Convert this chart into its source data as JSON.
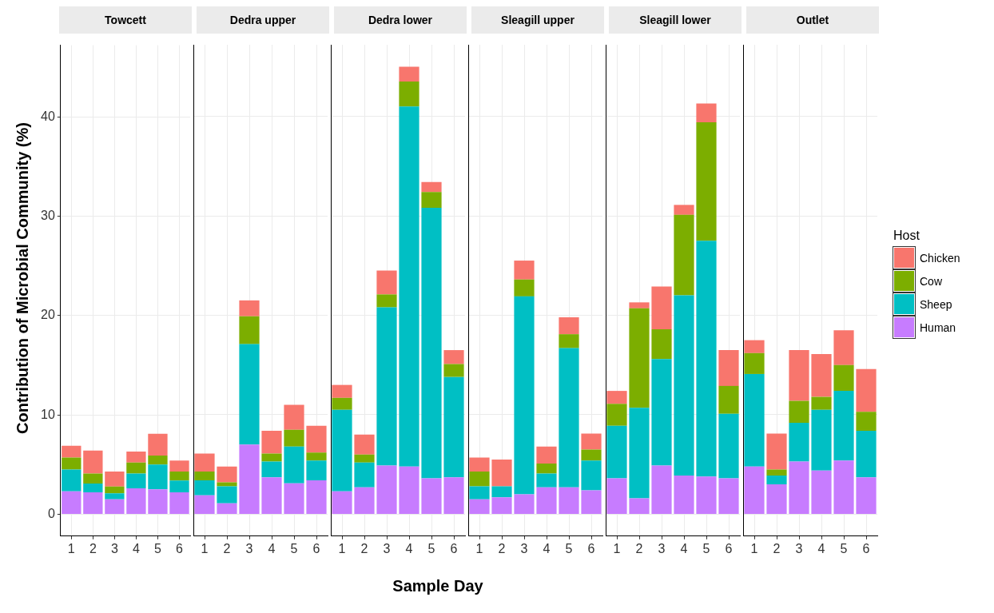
{
  "chart_data": [
    {
      "type": "bar",
      "title": "Towcett",
      "ylabel": "Contribution of Microbial Community (%)",
      "legend_title": "Host",
      "legend": "right",
      "categories": [
        "1",
        "2",
        "3",
        "4",
        "5",
        "6"
      ],
      "stacked": true,
      "ylim": [
        -2.2,
        47.2
      ],
      "yticks": [
        0,
        10,
        20,
        30,
        40
      ],
      "grid": true,
      "series": [
        {
          "name": "Human",
          "color": "#c77cff",
          "values": [
            2.3,
            2.2,
            1.5,
            2.6,
            2.5,
            2.2
          ]
        },
        {
          "name": "Sheep",
          "color": "#00bfc4",
          "values": [
            2.2,
            0.9,
            0.6,
            1.5,
            2.5,
            1.2
          ]
        },
        {
          "name": "Cow",
          "color": "#7cae00",
          "values": [
            1.2,
            1.0,
            0.7,
            1.1,
            0.9,
            0.9
          ]
        },
        {
          "name": "Chicken",
          "color": "#f8766d",
          "values": [
            1.2,
            2.3,
            1.5,
            1.1,
            2.2,
            1.1
          ]
        }
      ]
    },
    {
      "type": "bar",
      "title": "Dedra upper",
      "categories": [
        "1",
        "2",
        "3",
        "4",
        "5",
        "6"
      ],
      "stacked": true,
      "ylim": [
        -2.2,
        47.2
      ],
      "yticks": [
        0,
        10,
        20,
        30,
        40
      ],
      "grid": true,
      "tick_labels": "x",
      "series": [
        {
          "color": "#c77cff",
          "values": [
            1.9,
            1.1,
            7.0,
            3.7,
            3.1,
            3.4
          ]
        },
        {
          "color": "#00bfc4",
          "values": [
            1.5,
            1.7,
            10.1,
            1.6,
            3.7,
            2.0
          ]
        },
        {
          "color": "#7cae00",
          "values": [
            0.9,
            0.4,
            2.8,
            0.8,
            1.7,
            0.8
          ]
        },
        {
          "color": "#f8766d",
          "values": [
            1.8,
            1.6,
            1.6,
            2.3,
            2.5,
            2.7
          ]
        }
      ]
    },
    {
      "type": "bar",
      "title": "Dedra lower",
      "xlabel": "Sample Day",
      "categories": [
        "1",
        "2",
        "3",
        "4",
        "5",
        "6"
      ],
      "stacked": true,
      "ylim": [
        -2.2,
        47.2
      ],
      "yticks": [
        0,
        10,
        20,
        30,
        40
      ],
      "grid": true,
      "tick_labels": "x",
      "series": [
        {
          "color": "#c77cff",
          "values": [
            2.3,
            2.7,
            4.9,
            4.8,
            3.6,
            3.7
          ]
        },
        {
          "color": "#00bfc4",
          "values": [
            8.2,
            2.5,
            15.9,
            36.2,
            27.2,
            10.1
          ]
        },
        {
          "color": "#7cae00",
          "values": [
            1.2,
            0.8,
            1.3,
            2.5,
            1.6,
            1.3
          ]
        },
        {
          "color": "#f8766d",
          "values": [
            1.3,
            2.0,
            2.4,
            1.5,
            1.0,
            1.4
          ]
        }
      ]
    },
    {
      "type": "bar",
      "title": "Sleagill upper",
      "categories": [
        "1",
        "2",
        "3",
        "4",
        "5",
        "6"
      ],
      "stacked": true,
      "ylim": [
        -2.2,
        47.2
      ],
      "yticks": [
        0,
        10,
        20,
        30,
        40
      ],
      "grid": true,
      "tick_labels": "x",
      "series": [
        {
          "color": "#c77cff",
          "values": [
            1.5,
            1.7,
            2.0,
            2.7,
            2.7,
            2.4
          ]
        },
        {
          "color": "#00bfc4",
          "values": [
            1.3,
            1.1,
            19.9,
            1.4,
            14.0,
            3.0
          ]
        },
        {
          "color": "#7cae00",
          "values": [
            1.5,
            0,
            1.7,
            1.0,
            1.4,
            1.1
          ]
        },
        {
          "color": "#f8766d",
          "values": [
            1.4,
            2.7,
            1.9,
            1.7,
            1.7,
            1.6
          ]
        }
      ]
    },
    {
      "type": "bar",
      "title": "Sleagill lower",
      "categories": [
        "1",
        "2",
        "3",
        "4",
        "5",
        "6"
      ],
      "stacked": true,
      "ylim": [
        -2.2,
        47.2
      ],
      "yticks": [
        0,
        10,
        20,
        30,
        40
      ],
      "grid": true,
      "tick_labels": "x",
      "series": [
        {
          "color": "#c77cff",
          "values": [
            3.6,
            1.6,
            4.9,
            3.9,
            3.8,
            3.6
          ]
        },
        {
          "color": "#00bfc4",
          "values": [
            5.3,
            9.1,
            10.7,
            18.1,
            23.7,
            6.5
          ]
        },
        {
          "color": "#7cae00",
          "values": [
            2.2,
            10.0,
            3.0,
            8.1,
            11.9,
            2.8
          ]
        },
        {
          "color": "#f8766d",
          "values": [
            1.3,
            0.6,
            4.3,
            1.0,
            1.9,
            3.6
          ]
        }
      ]
    },
    {
      "type": "bar",
      "title": "Outlet",
      "categories": [
        "1",
        "2",
        "3",
        "4",
        "5",
        "6"
      ],
      "stacked": true,
      "ylim": [
        -2.2,
        47.2
      ],
      "yticks": [
        0,
        10,
        20,
        30,
        40
      ],
      "grid": true,
      "tick_labels": "x",
      "series": [
        {
          "color": "#c77cff",
          "values": [
            4.8,
            3.0,
            5.3,
            4.4,
            5.4,
            3.7
          ]
        },
        {
          "color": "#00bfc4",
          "values": [
            9.3,
            0.9,
            3.9,
            6.1,
            7.0,
            4.7
          ]
        },
        {
          "color": "#7cae00",
          "values": [
            2.1,
            0.6,
            2.2,
            1.3,
            2.6,
            1.9
          ]
        },
        {
          "color": "#f8766d",
          "values": [
            1.3,
            3.6,
            5.1,
            4.3,
            3.5,
            4.3
          ]
        }
      ]
    }
  ]
}
